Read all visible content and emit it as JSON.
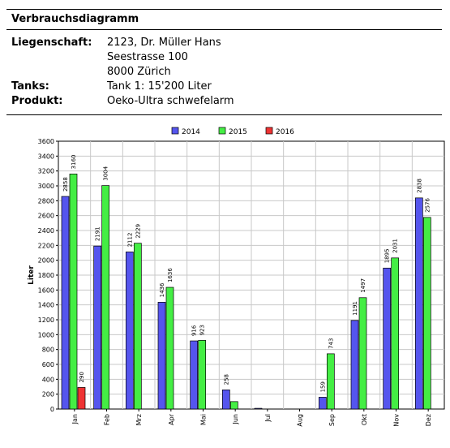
{
  "page": {
    "title": "Verbrauchsdiagramm",
    "info": [
      {
        "label": "Liegenschaft:",
        "values": [
          "2123, Dr. Müller Hans",
          "Seestrasse 100",
          "8000 Zürich"
        ]
      },
      {
        "label": "Tanks:",
        "values": [
          "Tank 1: 15'200 Liter"
        ]
      },
      {
        "label": "Produkt:",
        "values": [
          "Oeko-Ultra schwefelarm"
        ]
      }
    ]
  },
  "chart_data": {
    "type": "bar",
    "title": "",
    "xlabel": "",
    "ylabel": "Liter",
    "ylim": [
      0,
      3600
    ],
    "yticks": [
      0,
      200,
      400,
      600,
      800,
      1000,
      1200,
      1400,
      1600,
      1800,
      2000,
      2200,
      2400,
      2600,
      2800,
      3000,
      3200,
      3400,
      3600
    ],
    "grid": true,
    "legend_position": "top-center",
    "categories": [
      "Jan",
      "Feb",
      "Mrz",
      "Apr",
      "Mai",
      "Jun",
      "Jul",
      "Aug",
      "Sep",
      "Okt",
      "Nov",
      "Dez"
    ],
    "series": [
      {
        "name": "2014",
        "color": "#5555ee",
        "values": [
          2858,
          2191,
          2112,
          1436,
          916,
          258,
          10,
          0,
          159,
          1191,
          1895,
          2838
        ],
        "labels": [
          "2858",
          "2191",
          "2112",
          "1436",
          "916",
          "258",
          "",
          "",
          "159",
          "1191",
          "1895",
          "2838"
        ]
      },
      {
        "name": "2015",
        "color": "#44ee44",
        "values": [
          3160,
          3004,
          2229,
          1636,
          923,
          100,
          0,
          0,
          743,
          1497,
          2031,
          2576
        ],
        "labels": [
          "3160",
          "3004",
          "2229",
          "1636",
          "923",
          "",
          "",
          "",
          "743",
          "1497",
          "2031",
          "2576"
        ]
      },
      {
        "name": "2016",
        "color": "#ee3333",
        "values": [
          290,
          null,
          null,
          null,
          null,
          null,
          null,
          null,
          null,
          null,
          null,
          null
        ],
        "labels": [
          "290",
          "",
          "",
          "",
          "",
          "",
          "",
          "",
          "",
          "",
          "",
          ""
        ]
      }
    ]
  }
}
